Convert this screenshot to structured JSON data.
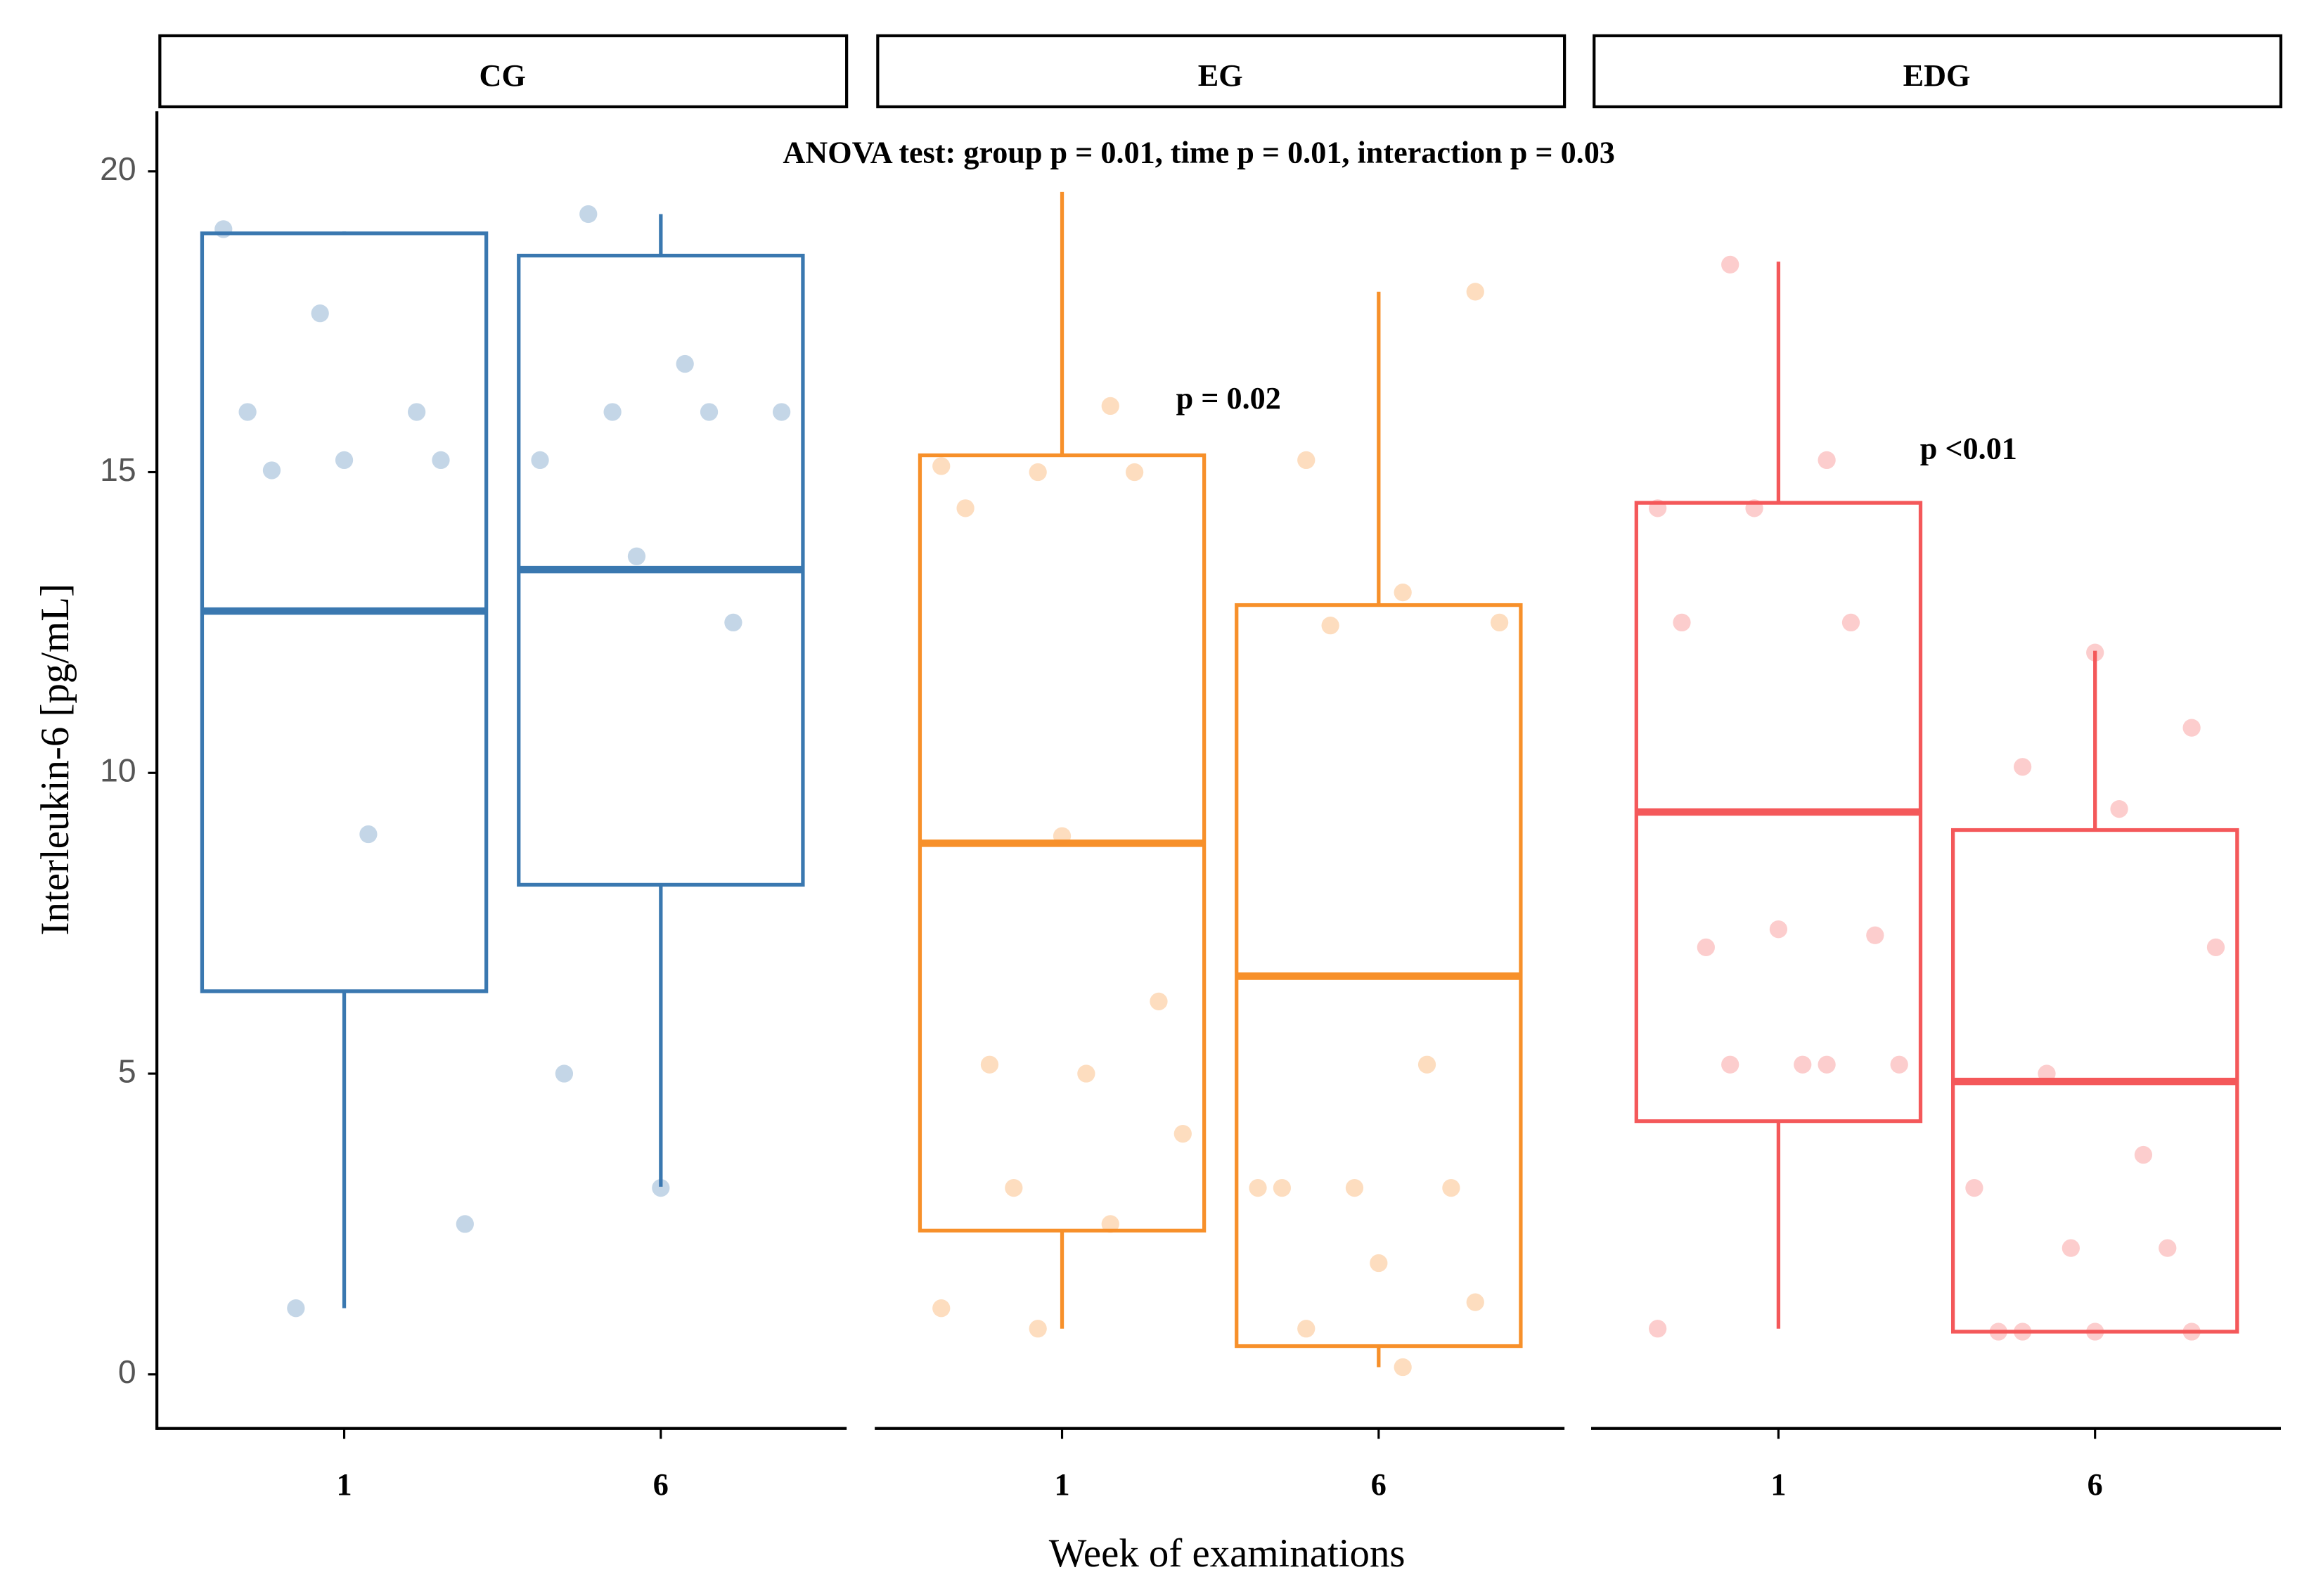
{
  "chart_data": {
    "type": "box",
    "annotation": "ANOVA test: group p = 0.01, time p = 0.01, interaction p = 0.03",
    "ylabel": "Interleukin-6 [pg/mL]",
    "xlabel": "Week of examinations",
    "ylim": [
      -0.9,
      21
    ],
    "yticks": [
      0,
      5,
      10,
      15,
      20
    ],
    "facets": [
      {
        "name": "CG",
        "color": "#3a78b0",
        "categories": [
          "1",
          "6"
        ],
        "boxes": [
          {
            "whisker_low": 1.1,
            "q1": 6.37,
            "median": 12.69,
            "q3": 18.97,
            "whisker_high": 19.0,
            "points": [
              19.04,
              17.64,
              16.0,
              16.0,
              15.2,
              15.2,
              15.03,
              8.98,
              2.5,
              1.1
            ]
          },
          {
            "whisker_low": 3.12,
            "q1": 8.14,
            "median": 13.38,
            "q3": 18.6,
            "whisker_high": 19.29,
            "points": [
              19.29,
              16.8,
              16.0,
              16.0,
              16.0,
              15.2,
              13.6,
              12.5,
              5.0,
              3.1
            ]
          }
        ]
      },
      {
        "name": "EG",
        "color": "#f7902a",
        "categories": [
          "1",
          "6"
        ],
        "annotation": "p = 0.02",
        "boxes": [
          {
            "whisker_low": 0.76,
            "q1": 2.39,
            "median": 8.83,
            "q3": 15.28,
            "whisker_high": 19.66,
            "points": [
              16.1,
              15.1,
              15.0,
              15.0,
              14.4,
              8.95,
              6.2,
              5.15,
              5.0,
              4.0,
              3.1,
              2.5,
              1.1,
              0.76
            ]
          },
          {
            "whisker_low": 0.12,
            "q1": 0.47,
            "median": 6.62,
            "q3": 12.79,
            "whisker_high": 18.0,
            "points": [
              18.0,
              15.2,
              13.0,
              12.5,
              12.45,
              5.15,
              3.1,
              3.1,
              3.1,
              3.1,
              1.85,
              1.2,
              0.76,
              0.12
            ]
          }
        ]
      },
      {
        "name": "EDG",
        "color": "#f4585a",
        "categories": [
          "1",
          "6"
        ],
        "annotation": "p <0.01",
        "boxes": [
          {
            "whisker_low": 0.76,
            "q1": 4.21,
            "median": 9.35,
            "q3": 14.49,
            "whisker_high": 18.5,
            "points": [
              18.45,
              15.2,
              14.4,
              14.4,
              12.5,
              12.5,
              7.4,
              7.3,
              7.1,
              5.15,
              5.15,
              5.15,
              5.15,
              0.76
            ]
          },
          {
            "whisker_low": 0.71,
            "q1": 0.71,
            "median": 4.87,
            "q3": 9.05,
            "whisker_high": 12.03,
            "points": [
              12.0,
              10.75,
              10.1,
              9.4,
              7.1,
              5.0,
              3.65,
              3.1,
              2.1,
              2.1,
              0.71,
              0.71,
              0.71,
              0.71
            ]
          }
        ]
      }
    ]
  }
}
